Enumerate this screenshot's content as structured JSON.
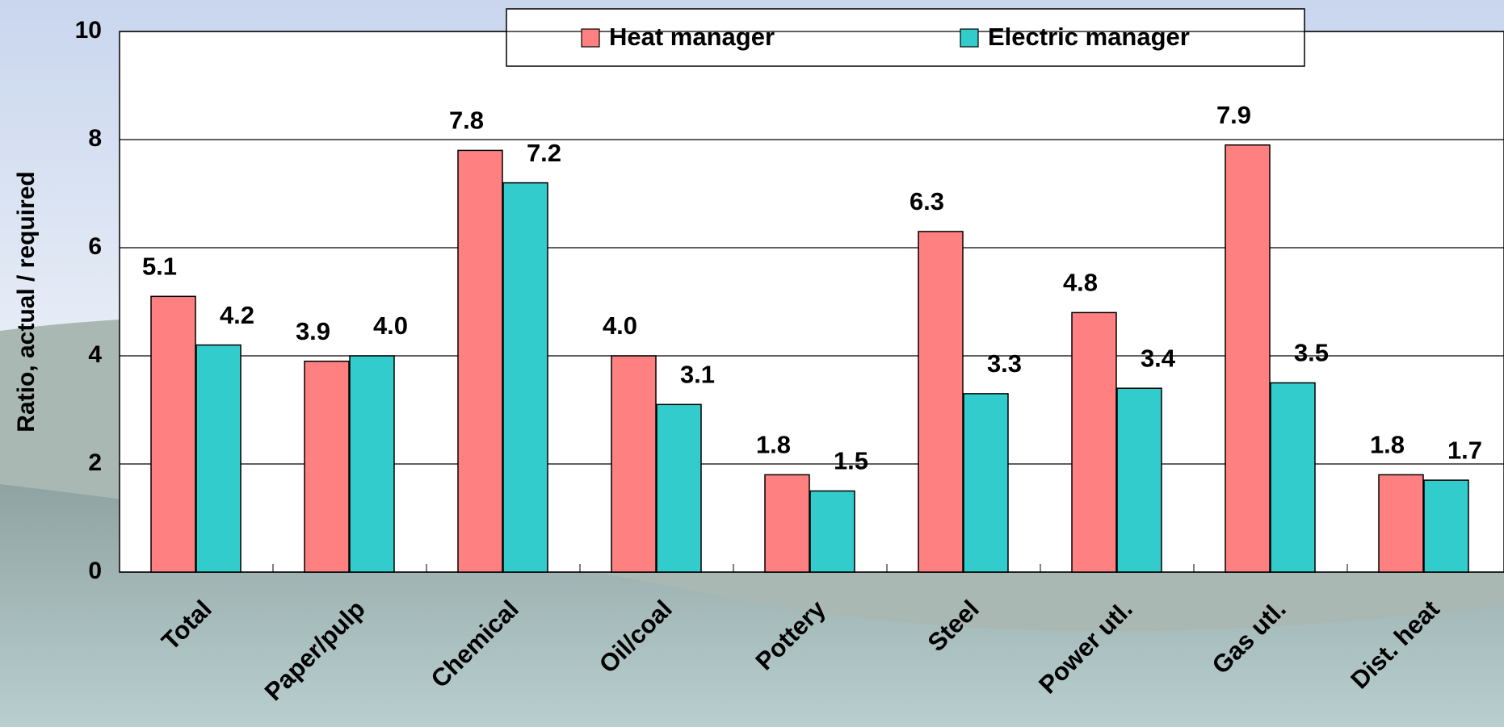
{
  "chart_data": {
    "type": "bar",
    "y_label": "Ratio, actual / required",
    "categories": [
      "Total",
      "Paper/pulp",
      "Chemical",
      "Oil/coal",
      "Pottery",
      "Steel",
      "Power utl.",
      "Gas utl.",
      "Dist. heat"
    ],
    "series": [
      {
        "name": "Heat manager",
        "color": "#ff8080",
        "values": [
          5.1,
          3.9,
          7.8,
          4.0,
          1.8,
          6.3,
          4.8,
          7.9,
          1.8
        ],
        "value_labels": [
          "5.1",
          "3.9",
          "7.8",
          "4.0",
          "1.8",
          "6.3",
          "4.8",
          "7.9",
          "1.8"
        ]
      },
      {
        "name": "Electric manager",
        "color": "#33cccc",
        "values": [
          4.2,
          4.0,
          7.2,
          3.1,
          1.5,
          3.3,
          3.4,
          3.5,
          1.7
        ],
        "value_labels": [
          "4.2",
          "4.0",
          "7.2",
          "3.1",
          "1.5",
          "3.3",
          "3.4",
          "3.5",
          "1.7"
        ]
      }
    ],
    "ylim": [
      0,
      10
    ],
    "yticks": [
      0,
      2,
      4,
      6,
      8,
      10
    ],
    "grid": true,
    "legend": "top"
  }
}
